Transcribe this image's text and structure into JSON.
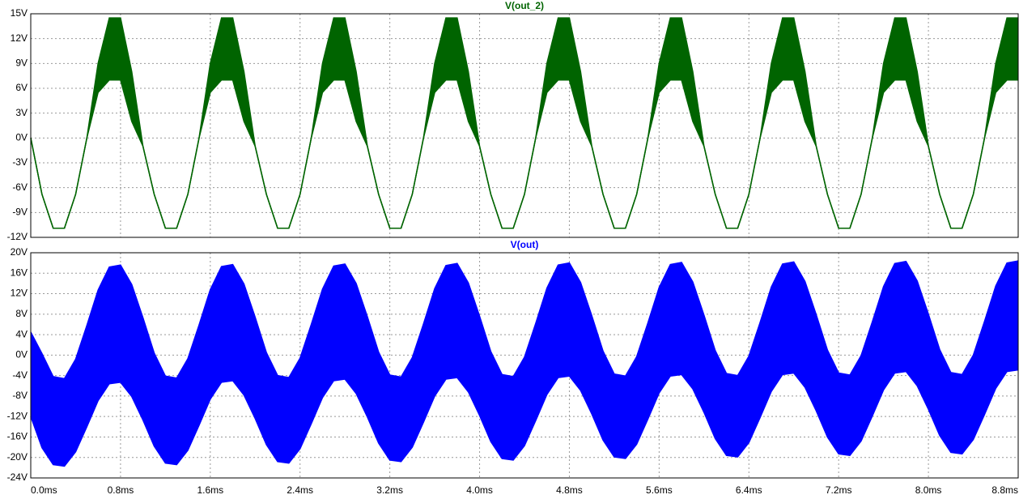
{
  "chart_data": [
    {
      "type": "band",
      "title": "V(out_2)",
      "color": "#006400",
      "x": [
        0,
        0.1,
        0.2,
        0.3,
        0.4,
        0.5,
        0.6,
        0.7,
        0.8,
        0.9,
        1,
        1.1,
        1.2,
        1.3,
        1.4,
        1.5,
        1.6,
        1.7,
        1.8,
        1.9,
        2,
        2.1,
        2.2,
        2.3,
        2.4,
        2.5,
        2.6,
        2.7,
        2.8,
        2.9,
        3,
        3.1,
        3.2,
        3.3,
        3.4,
        3.5,
        3.6,
        3.7,
        3.8,
        3.9,
        4,
        4.1,
        4.2,
        4.3,
        4.4,
        4.5,
        4.6,
        4.7,
        4.8,
        4.9,
        5,
        5.1,
        5.2,
        5.3,
        5.4,
        5.5,
        5.6,
        5.7,
        5.8,
        5.9,
        6,
        6.1,
        6.2,
        6.3,
        6.4,
        6.5,
        6.6,
        6.7,
        6.8,
        6.9,
        7,
        7.1,
        7.2,
        7.3,
        7.4,
        7.5,
        7.6,
        7.7,
        7.8,
        7.9,
        8,
        8.1,
        8.2,
        8.3,
        8.4,
        8.5,
        8.6,
        8.7,
        8.8
      ],
      "low": [
        0,
        -6.8,
        -10.9,
        -10.9,
        -6.8,
        0,
        5.5,
        7,
        7,
        2,
        -1,
        -6.8,
        -10.9,
        -10.9,
        -6.8,
        0,
        5.5,
        7,
        7,
        2,
        -1,
        -6.8,
        -10.9,
        -10.9,
        -6.8,
        0,
        5.5,
        7,
        7,
        2,
        -1,
        -6.8,
        -10.9,
        -10.9,
        -6.8,
        0,
        5.5,
        7,
        7,
        2,
        -1,
        -6.8,
        -10.9,
        -10.9,
        -6.8,
        0,
        5.5,
        7,
        7,
        2,
        -1,
        -6.8,
        -10.9,
        -10.9,
        -6.8,
        0,
        5.5,
        7,
        7,
        2,
        -1,
        -6.8,
        -10.9,
        -10.9,
        -6.8,
        0,
        5.5,
        7,
        7,
        2,
        -1,
        -6.8,
        -10.9,
        -10.9,
        -6.8,
        0,
        5.5,
        7,
        7,
        2,
        -1,
        -6.8,
        -10.9,
        -10.9,
        -6.8,
        0,
        5.5,
        7,
        7
      ],
      "high": [
        0,
        -6.8,
        -10.9,
        -10.9,
        -6.8,
        0,
        9,
        14.5,
        14.5,
        8,
        -1,
        -6.8,
        -10.9,
        -10.9,
        -6.8,
        0,
        9,
        14.5,
        14.5,
        8,
        -1,
        -6.8,
        -10.9,
        -10.9,
        -6.8,
        0,
        9,
        14.5,
        14.5,
        8,
        -1,
        -6.8,
        -10.9,
        -10.9,
        -6.8,
        0,
        9,
        14.5,
        14.5,
        8,
        -1,
        -6.8,
        -10.9,
        -10.9,
        -6.8,
        0,
        9,
        14.5,
        14.5,
        8,
        -1,
        -6.8,
        -10.9,
        -10.9,
        -6.8,
        0,
        9,
        14.5,
        14.5,
        8,
        -1,
        -6.8,
        -10.9,
        -10.9,
        -6.8,
        0,
        9,
        14.5,
        14.5,
        8,
        -1,
        -6.8,
        -10.9,
        -10.9,
        -6.8,
        0,
        9,
        14.5,
        14.5,
        8,
        -1,
        -6.8,
        -10.9,
        -10.9,
        -6.8,
        0,
        9,
        14.5,
        14.5
      ],
      "xlim": [
        0,
        8.8
      ],
      "xticks": [
        0,
        0.8,
        1.6,
        2.4,
        3.2,
        4,
        4.8,
        5.6,
        6.4,
        7.2,
        8,
        8.8
      ],
      "ylim": [
        -12,
        15
      ],
      "yticks": [
        {
          "value": -12,
          "label": "-12V"
        },
        {
          "value": -9,
          "label": "-9V"
        },
        {
          "value": -6,
          "label": "-6V"
        },
        {
          "value": -3,
          "label": "-3V"
        },
        {
          "value": 0,
          "label": "0V"
        },
        {
          "value": 3,
          "label": "3V"
        },
        {
          "value": 6,
          "label": "6V"
        },
        {
          "value": 9,
          "label": "9V"
        },
        {
          "value": 12,
          "label": "12V"
        },
        {
          "value": 15,
          "label": "15V"
        }
      ],
      "grid": true
    },
    {
      "type": "band",
      "title": "V(out)",
      "color": "#0000ff",
      "x": [
        0,
        0.1,
        0.2,
        0.3,
        0.4,
        0.5,
        0.6,
        0.7,
        0.8,
        0.9,
        1,
        1.1,
        1.2,
        1.3,
        1.4,
        1.5,
        1.6,
        1.7,
        1.8,
        1.9,
        2,
        2.1,
        2.2,
        2.3,
        2.4,
        2.5,
        2.6,
        2.7,
        2.8,
        2.9,
        3,
        3.1,
        3.2,
        3.3,
        3.4,
        3.5,
        3.6,
        3.7,
        3.8,
        3.9,
        4,
        4.1,
        4.2,
        4.3,
        4.4,
        4.5,
        4.6,
        4.7,
        4.8,
        4.9,
        5,
        5.1,
        5.2,
        5.3,
        5.4,
        5.5,
        5.6,
        5.7,
        5.8,
        5.9,
        6,
        6.1,
        6.2,
        6.3,
        6.4,
        6.5,
        6.6,
        6.7,
        6.8,
        6.9,
        7,
        7.1,
        7.2,
        7.3,
        7.4,
        7.5,
        7.6,
        7.7,
        7.8,
        7.9,
        8,
        8.1,
        8.2,
        8.3,
        8.4,
        8.5,
        8.6,
        8.7,
        8.8
      ],
      "low": [
        -12,
        -18.1,
        -21.4,
        -21.7,
        -18.9,
        -14,
        -8.9,
        -5.6,
        -5.3,
        -8.1,
        -12.7,
        -17.8,
        -21.1,
        -21.4,
        -18.6,
        -13.7,
        -8.6,
        -5.3,
        -5,
        -7.8,
        -12.4,
        -17.5,
        -20.8,
        -21.1,
        -18.3,
        -13.4,
        -8.3,
        -5,
        -4.7,
        -7.5,
        -12.1,
        -17.2,
        -20.5,
        -20.8,
        -18,
        -13.1,
        -8,
        -4.7,
        -4.4,
        -7.2,
        -11.8,
        -16.9,
        -20.2,
        -20.5,
        -17.7,
        -12.8,
        -7.7,
        -4.4,
        -4.1,
        -6.9,
        -11.5,
        -16.6,
        -19.9,
        -20.2,
        -17.4,
        -12.5,
        -7.4,
        -4.1,
        -3.8,
        -6.6,
        -11.2,
        -16.3,
        -19.6,
        -19.9,
        -17.1,
        -12.2,
        -7.1,
        -3.8,
        -3.5,
        -6.3,
        -10.9,
        -16,
        -19.3,
        -19.6,
        -16.8,
        -11.9,
        -6.8,
        -3.5,
        -3.2,
        -6,
        -10.6,
        -15.7,
        -19,
        -19.3,
        -16.5,
        -11.6,
        -6.5,
        -3.2,
        -2.9
      ],
      "high": [
        4.5,
        0.3,
        -4.2,
        -4.6,
        -0.8,
        5.8,
        12.7,
        17.2,
        17.6,
        13.8,
        7.3,
        0.4,
        -4.1,
        -4.5,
        -0.7,
        5.9,
        12.8,
        17.3,
        17.7,
        13.9,
        7.4,
        0.5,
        -4,
        -4.4,
        -0.6,
        6,
        12.9,
        17.4,
        17.8,
        14,
        7.5,
        0.6,
        -3.9,
        -4.3,
        -0.5,
        6.1,
        13,
        17.5,
        17.9,
        14.1,
        7.6,
        0.7,
        -3.8,
        -4.2,
        -0.4,
        6.2,
        13.1,
        17.6,
        18,
        14.2,
        7.7,
        0.8,
        -3.7,
        -4.1,
        -0.3,
        6.3,
        13.2,
        17.7,
        18.1,
        14.3,
        7.8,
        0.9,
        -3.6,
        -4,
        -0.2,
        6.4,
        13.3,
        17.8,
        18.2,
        14.4,
        7.9,
        1,
        -3.5,
        -3.9,
        -0.1,
        6.5,
        13.4,
        17.9,
        18.3,
        14.5,
        8,
        1.1,
        -3.4,
        -3.8,
        0,
        6.6,
        13.5,
        18,
        18.4
      ],
      "xlim": [
        0,
        8.8
      ],
      "xticks": [
        {
          "value": 0,
          "label": "0.0ms"
        },
        {
          "value": 0.8,
          "label": "0.8ms"
        },
        {
          "value": 1.6,
          "label": "1.6ms"
        },
        {
          "value": 2.4,
          "label": "2.4ms"
        },
        {
          "value": 3.2,
          "label": "3.2ms"
        },
        {
          "value": 4,
          "label": "4.0ms"
        },
        {
          "value": 4.8,
          "label": "4.8ms"
        },
        {
          "value": 5.6,
          "label": "5.6ms"
        },
        {
          "value": 6.4,
          "label": "6.4ms"
        },
        {
          "value": 7.2,
          "label": "7.2ms"
        },
        {
          "value": 8,
          "label": "8.0ms"
        },
        {
          "value": 8.8,
          "label": "8.8ms"
        }
      ],
      "ylim": [
        -24,
        20
      ],
      "yticks": [
        {
          "value": -24,
          "label": "-24V"
        },
        {
          "value": -20,
          "label": "-20V"
        },
        {
          "value": -16,
          "label": "-16V"
        },
        {
          "value": -12,
          "label": "-12V"
        },
        {
          "value": -8,
          "label": "-8V"
        },
        {
          "value": -4,
          "label": "-4V"
        },
        {
          "value": 0,
          "label": "0V"
        },
        {
          "value": 4,
          "label": "4V"
        },
        {
          "value": 8,
          "label": "8V"
        },
        {
          "value": 12,
          "label": "12V"
        },
        {
          "value": 16,
          "label": "16V"
        },
        {
          "value": 20,
          "label": "20V"
        }
      ],
      "grid": true
    }
  ]
}
